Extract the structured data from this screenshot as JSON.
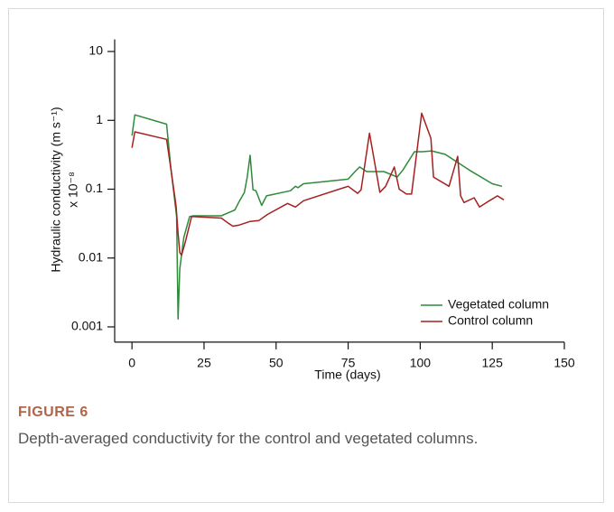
{
  "chart_data": {
    "type": "line",
    "x_label": "Time (days)",
    "y_label": "Hydraulic conductivity (m s⁻¹)",
    "y_label_scale": "x 10⁻⁸",
    "log_y": true,
    "xlim": [
      -6,
      150
    ],
    "xticks": [
      0,
      25,
      50,
      75,
      100,
      125,
      150
    ],
    "ylim": [
      0.0006,
      15
    ],
    "yticks": [
      0.001,
      0.01,
      0.1,
      1,
      10
    ],
    "legend": "lower right",
    "series": [
      {
        "name": "Vegetated column",
        "color": "#2e8b3a",
        "x": [
          0,
          1,
          12,
          13.5,
          15.5,
          16,
          16.6,
          18,
          20,
          21.3,
          31,
          35.7,
          37,
          39,
          40,
          41,
          42,
          43,
          45,
          46.7,
          55,
          56.7,
          57.6,
          59.5,
          75,
          77.4,
          79,
          81.4,
          87.4,
          92,
          94,
          98,
          100.8,
          104,
          108.7,
          117,
          125,
          128.4
        ],
        "values": [
          0.6,
          1.2,
          0.88,
          0.2,
          0.04,
          0.0013,
          0.007,
          0.02,
          0.04,
          0.041,
          0.041,
          0.05,
          0.064,
          0.09,
          0.15,
          0.31,
          0.098,
          0.095,
          0.058,
          0.08,
          0.095,
          0.11,
          0.105,
          0.12,
          0.14,
          0.18,
          0.21,
          0.18,
          0.18,
          0.15,
          0.19,
          0.35,
          0.35,
          0.36,
          0.32,
          0.19,
          0.12,
          0.11
        ]
      },
      {
        "name": "Control column",
        "color": "#a52020",
        "x": [
          0,
          1,
          12,
          13.5,
          15.3,
          16,
          16.6,
          17.2,
          18.5,
          20.7,
          31,
          33,
          35,
          37,
          41,
          44,
          47,
          54,
          56.7,
          59.5,
          75,
          78.3,
          79.5,
          82.4,
          86,
          88,
          91,
          92.7,
          95.2,
          97,
          100.5,
          103.7,
          104.6,
          110,
          113,
          114,
          115.2,
          118.7,
          120.6,
          124,
          126.8,
          129
        ],
        "values": [
          0.4,
          0.68,
          0.53,
          0.195,
          0.057,
          0.023,
          0.012,
          0.011,
          0.017,
          0.04,
          0.038,
          0.033,
          0.029,
          0.03,
          0.034,
          0.035,
          0.043,
          0.062,
          0.055,
          0.068,
          0.11,
          0.087,
          0.098,
          0.65,
          0.09,
          0.11,
          0.21,
          0.1,
          0.085,
          0.085,
          1.27,
          0.55,
          0.15,
          0.11,
          0.3,
          0.08,
          0.064,
          0.075,
          0.055,
          0.068,
          0.08,
          0.07
        ]
      }
    ]
  },
  "figure": {
    "label": "FIGURE 6",
    "caption": "Depth-averaged conductivity for the control and vegetated columns."
  }
}
